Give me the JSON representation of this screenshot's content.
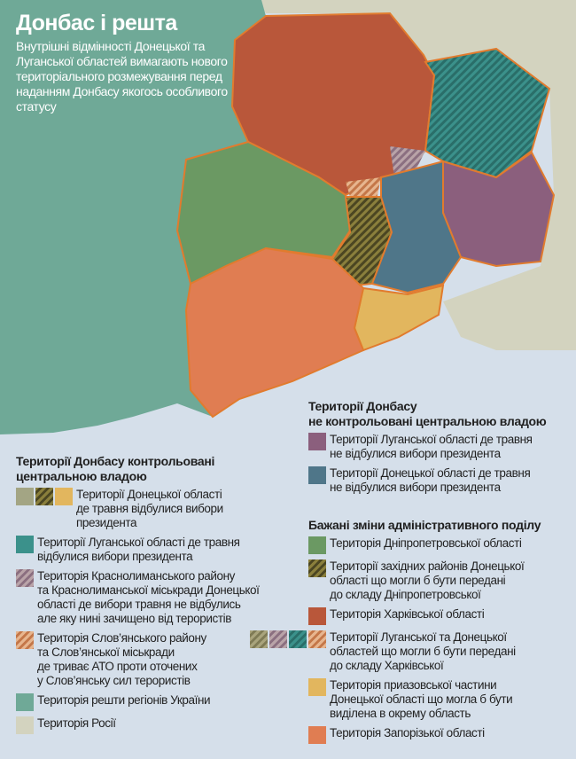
{
  "header": {
    "title": "Донбас і решта",
    "subtitle": "Внутрішні відмінності Донецької та Луганської областей вимагають нового територіального розмежування перед наданням Донбасу якогось особливого статусу"
  },
  "colors": {
    "ukraine_rest": "#6fa997",
    "russia": "#d3d3bf",
    "sea": "#d5dfea",
    "kharkiv": "#b9573a",
    "luhansk_controlled": "#3b918b",
    "luhansk_uncontrolled": "#8b5f7d",
    "donetsk_uncontrolled": "#4f7689",
    "dnipropetrovsk": "#6b9963",
    "donetsk_west": "#6f6a35",
    "azov": "#e2b65e",
    "zaporizhzhia": "#e07d52",
    "border": "#e17b2e"
  },
  "legend_controlled": {
    "heading": "Території Донбасу  контрольовані\nцентральною владою",
    "items": [
      {
        "text": "Території Донецької області\nде      травня відбулися вибори\nпрезидента",
        "swatches": [
          "solid-olive-grey",
          "hatch-olive",
          "solid-yellow"
        ]
      },
      {
        "text": "Території Луганської області  де      травня\nвідбулися вибори президента",
        "swatches": [
          "solid-teal"
        ]
      },
      {
        "text": "Територія Краснолиманського району\nта Краснолиманської міськради Донецької\nобласті  де вибори      травня не відбулись\nале яку нині зачищено від терористів",
        "swatches": [
          "hatch-purple"
        ]
      },
      {
        "text": "Територія Слов’янського району\nта Слов’янської міськради\nде триває АТО проти оточених\nу Слов’янську сил терористів",
        "swatches": [
          "hatch-orange"
        ]
      },
      {
        "text": "Територія решти регіонів України",
        "swatches": [
          "solid-ukraine"
        ]
      },
      {
        "text": "Територія Росії",
        "swatches": [
          "solid-russia"
        ]
      }
    ]
  },
  "legend_uncontrolled": {
    "heading": "Території Донбасу\nне контрольовані центральною владою",
    "items": [
      {
        "text": "Території Луганської області  де      травня\nне відбулися вибори президента",
        "swatches": [
          "solid-purple"
        ]
      },
      {
        "text": "Території Донецької області  де      травня\nне відбулися вибори президента",
        "swatches": [
          "solid-blue"
        ]
      }
    ]
  },
  "legend_changes": {
    "heading": "Бажані зміни адміністративного поділу",
    "items": [
      {
        "text": "Територія Дніпропетровської області",
        "swatches": [
          "solid-green"
        ]
      },
      {
        "text": "Території західних районів Донецької\nобласті  що могли б бути передані\nдо складу Дніпропетровської",
        "swatches": [
          "hatch-olive"
        ]
      },
      {
        "text": "Територія Харківської області",
        "swatches": [
          "solid-kharkiv"
        ]
      },
      {
        "text": "Території Луганської та Донецької\nобластей  що могли б бути передані\nдо складу Харківської",
        "swatches": [
          "hatch-olive-grey",
          "hatch-purple",
          "hatch-teal",
          "hatch-orange"
        ]
      },
      {
        "text": "Територія приазовської частини\nДонецької області  що могла б бути\nвиділена в окрему область",
        "swatches": [
          "solid-yellow"
        ]
      },
      {
        "text": "Територія Запорізької області",
        "swatches": [
          "solid-zaporizhzhia"
        ]
      }
    ]
  }
}
